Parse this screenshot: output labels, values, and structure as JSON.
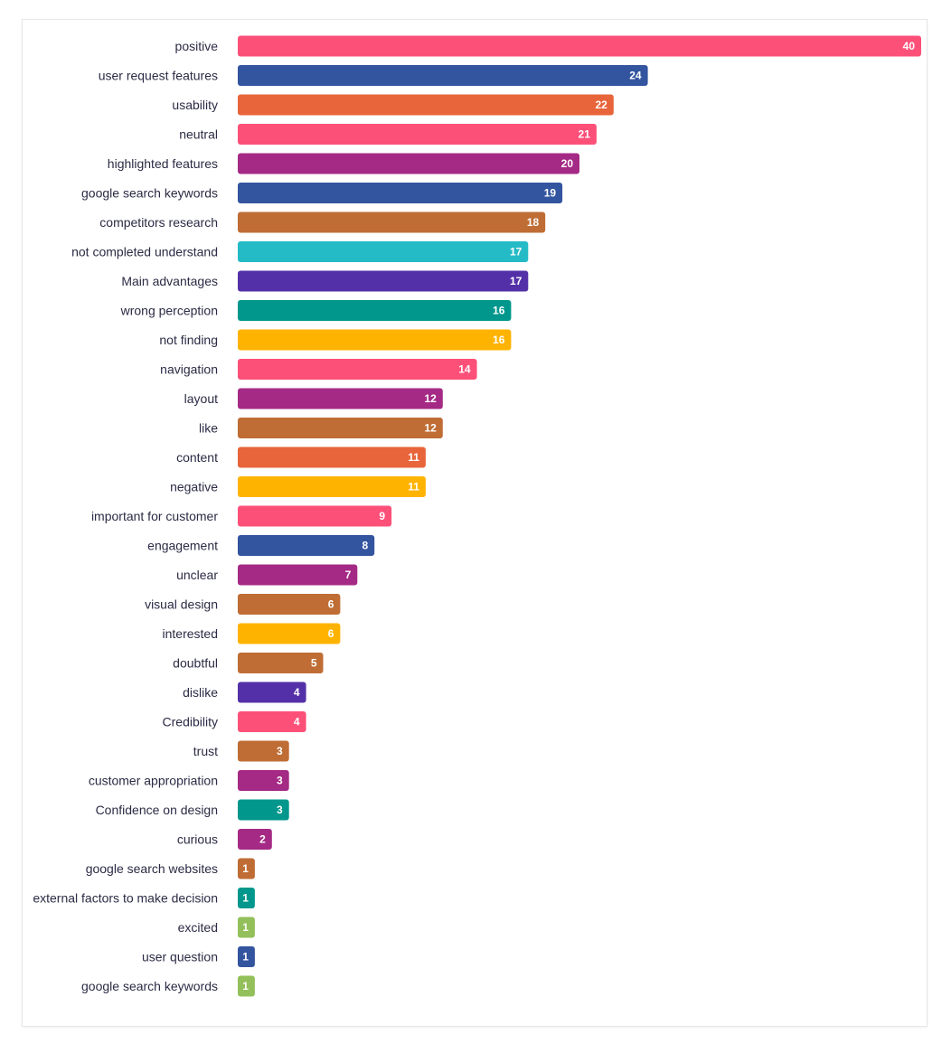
{
  "chart_data": {
    "type": "bar",
    "orientation": "horizontal",
    "title": "",
    "xlabel": "",
    "ylabel": "",
    "xlim": [
      0,
      40
    ],
    "grid": false,
    "legend": "none",
    "data_labels": true,
    "categories": [
      "positive",
      "user request features",
      "usability",
      "neutral",
      "highlighted features",
      "google search keywords",
      "competitors research",
      "not completed understand",
      "Main advantages",
      "wrong perception",
      "not finding",
      "navigation",
      "layout",
      "like",
      "content",
      "negative",
      "important for customer",
      "engagement",
      "unclear",
      "visual design",
      "interested",
      "doubtful",
      "dislike",
      "Credibility",
      "trust",
      "customer appropriation",
      "Confidence on design",
      "curious",
      "google search websites",
      "external factors to make decision",
      "excited",
      "user question",
      "google search keywords"
    ],
    "values": [
      40,
      24,
      22,
      21,
      20,
      19,
      18,
      17,
      17,
      16,
      16,
      14,
      12,
      12,
      11,
      11,
      9,
      8,
      7,
      6,
      6,
      5,
      4,
      4,
      3,
      3,
      3,
      2,
      1,
      1,
      1,
      1,
      1
    ],
    "colors": [
      "#fd5079",
      "#33559f",
      "#e8643a",
      "#fd5079",
      "#a52a85",
      "#33559f",
      "#bf6d35",
      "#24bbc6",
      "#5430a8",
      "#01978c",
      "#ffb301",
      "#fd5079",
      "#a52a85",
      "#bf6d35",
      "#e8643a",
      "#ffb301",
      "#fd5079",
      "#33559f",
      "#a52a85",
      "#bf6d35",
      "#ffb301",
      "#bf6d35",
      "#5430a8",
      "#fd5079",
      "#bf6d35",
      "#a52a85",
      "#01978c",
      "#a52a85",
      "#bf6d35",
      "#01978c",
      "#93c05a",
      "#33559f",
      "#93c05a"
    ]
  }
}
